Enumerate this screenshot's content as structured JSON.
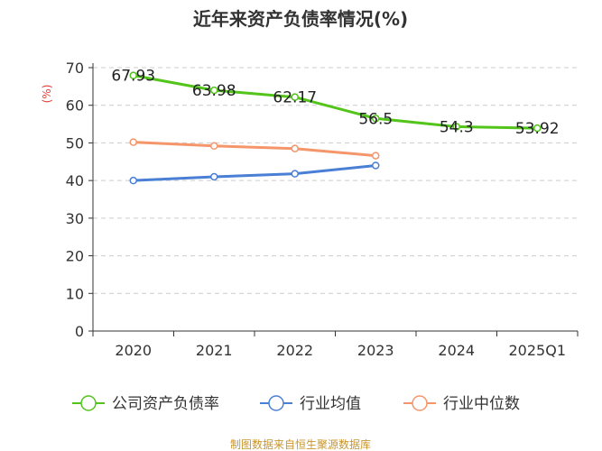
{
  "chart_data": {
    "type": "line",
    "title": "近年来资产负债率情况(%)",
    "ylabel": "(%)",
    "xlabel": "",
    "categories": [
      "2020",
      "2021",
      "2022",
      "2023",
      "2024",
      "2025Q1"
    ],
    "yticks": [
      0,
      10,
      20,
      30,
      40,
      50,
      60,
      70
    ],
    "ylim": [
      0,
      70
    ],
    "grid": true,
    "legend_position": "bottom",
    "series": [
      {
        "name": "公司资产负债率",
        "color": "#52c41a",
        "values": [
          67.93,
          63.98,
          62.17,
          56.5,
          54.3,
          53.92
        ],
        "labels": [
          "67.93",
          "63.98",
          "62.17",
          "56.5",
          "54.3",
          "53.92"
        ]
      },
      {
        "name": "行业均值",
        "color": "#4a7fd6",
        "values": [
          40.0,
          41.0,
          41.8,
          44.0,
          null,
          null
        ]
      },
      {
        "name": "行业中位数",
        "color": "#f4956a",
        "values": [
          50.2,
          49.2,
          48.5,
          46.6,
          null,
          null
        ]
      }
    ],
    "source": "制图数据来自恒生聚源数据库",
    "source_color": "#c8962e",
    "ylabel_color": "#e53935"
  }
}
